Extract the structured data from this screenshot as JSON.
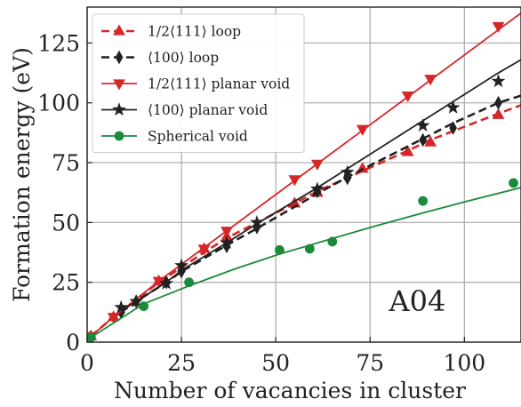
{
  "chart_data": {
    "type": "line",
    "title": "",
    "xlabel": "Number of vacancies in cluster",
    "ylabel": "Formation energy (eV)",
    "xlim": [
      0,
      115
    ],
    "ylim": [
      0,
      140
    ],
    "xticks": [
      0,
      25,
      50,
      75,
      100
    ],
    "yticks": [
      0,
      25,
      50,
      75,
      100,
      125
    ],
    "grid": true,
    "legend_position": "top-left",
    "annotation": "A04",
    "series": [
      {
        "name": "1/2⟨111⟩ loop",
        "color": "#d62728",
        "marker": "triangle-up",
        "line": "dashed",
        "points": [
          [
            1,
            2.5
          ],
          [
            7,
            10.5
          ],
          [
            19,
            25.5
          ],
          [
            31,
            39
          ],
          [
            37,
            44
          ],
          [
            55,
            58
          ],
          [
            61,
            62.5
          ],
          [
            73,
            72.5
          ],
          [
            85,
            79.5
          ],
          [
            91,
            83.5
          ],
          [
            109,
            95
          ]
        ],
        "fit": [
          [
            1,
            2.5
          ],
          [
            7,
            10.5
          ],
          [
            19,
            25
          ],
          [
            31,
            37.5
          ],
          [
            37,
            43.5
          ],
          [
            55,
            58
          ],
          [
            61,
            63
          ],
          [
            73,
            71.5
          ],
          [
            85,
            80
          ],
          [
            91,
            84.5
          ],
          [
            109,
            95.5
          ],
          [
            115,
            99
          ]
        ]
      },
      {
        "name": "⟨100⟩ loop",
        "color": "#222222",
        "marker": "diamond",
        "line": "dashed",
        "points": [
          [
            9,
            12.5
          ],
          [
            13,
            17
          ],
          [
            21,
            25
          ],
          [
            25,
            29.5
          ],
          [
            37,
            40
          ],
          [
            45,
            48
          ],
          [
            61,
            63
          ],
          [
            69,
            68.5
          ],
          [
            89,
            84.5
          ],
          [
            97,
            89.5
          ],
          [
            109,
            100
          ]
        ],
        "fit": [
          [
            9,
            12.5
          ],
          [
            13,
            17
          ],
          [
            21,
            25
          ],
          [
            25,
            29.5
          ],
          [
            37,
            40.5
          ],
          [
            45,
            47.5
          ],
          [
            61,
            62
          ],
          [
            69,
            69
          ],
          [
            89,
            85
          ],
          [
            97,
            91.5
          ],
          [
            109,
            100
          ],
          [
            115,
            103
          ]
        ]
      },
      {
        "name": "1/2⟨111⟩ planar void",
        "color": "#d62728",
        "marker": "triangle-down",
        "line": "solid",
        "points": [
          [
            1,
            2.5
          ],
          [
            7,
            10.5
          ],
          [
            19,
            25.5
          ],
          [
            31,
            39
          ],
          [
            37,
            46.5
          ],
          [
            55,
            68
          ],
          [
            61,
            74.5
          ],
          [
            73,
            89
          ],
          [
            85,
            103
          ],
          [
            91,
            110
          ],
          [
            109,
            132
          ]
        ],
        "fit": [
          [
            1,
            2.5
          ],
          [
            7,
            10.5
          ],
          [
            19,
            25.5
          ],
          [
            31,
            39.5
          ],
          [
            37,
            46.5
          ],
          [
            55,
            67.5
          ],
          [
            61,
            74.5
          ],
          [
            73,
            88.5
          ],
          [
            85,
            102.5
          ],
          [
            91,
            109.5
          ],
          [
            109,
            130.5
          ],
          [
            115,
            137.5
          ]
        ]
      },
      {
        "name": "⟨100⟩ planar void",
        "color": "#222222",
        "marker": "star",
        "line": "solid",
        "points": [
          [
            9,
            14.5
          ],
          [
            13,
            17
          ],
          [
            21,
            24.5
          ],
          [
            25,
            32
          ],
          [
            37,
            41.5
          ],
          [
            45,
            50
          ],
          [
            61,
            64
          ],
          [
            69,
            71
          ],
          [
            89,
            90.5
          ],
          [
            97,
            98
          ],
          [
            109,
            109
          ]
        ],
        "fit": [
          [
            9,
            13
          ],
          [
            13,
            17
          ],
          [
            21,
            25
          ],
          [
            25,
            30
          ],
          [
            37,
            41.5
          ],
          [
            45,
            49.5
          ],
          [
            61,
            64.5
          ],
          [
            69,
            72.5
          ],
          [
            89,
            92.5
          ],
          [
            97,
            100.5
          ],
          [
            109,
            112.5
          ],
          [
            115,
            118
          ]
        ]
      },
      {
        "name": "Spherical void",
        "color": "#1b8a3a",
        "marker": "circle",
        "line": "solid",
        "points": [
          [
            1,
            2
          ],
          [
            15,
            15
          ],
          [
            27,
            25
          ],
          [
            51,
            38.5
          ],
          [
            59,
            39
          ],
          [
            65,
            42
          ],
          [
            89,
            59
          ],
          [
            113,
            66.5
          ]
        ],
        "fit": [
          [
            1,
            2
          ],
          [
            15,
            16
          ],
          [
            27,
            23.5
          ],
          [
            39,
            30.5
          ],
          [
            51,
            36.8
          ],
          [
            59,
            40.5
          ],
          [
            65,
            43.3
          ],
          [
            77,
            48.8
          ],
          [
            89,
            54
          ],
          [
            101,
            59
          ],
          [
            113,
            63.8
          ],
          [
            115,
            64.6
          ]
        ]
      }
    ]
  }
}
